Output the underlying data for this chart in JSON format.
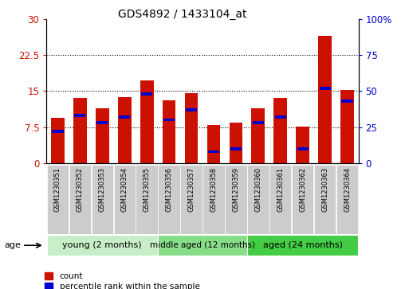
{
  "title": "GDS4892 / 1433104_at",
  "samples": [
    "GSM1230351",
    "GSM1230352",
    "GSM1230353",
    "GSM1230354",
    "GSM1230355",
    "GSM1230356",
    "GSM1230357",
    "GSM1230358",
    "GSM1230359",
    "GSM1230360",
    "GSM1230361",
    "GSM1230362",
    "GSM1230363",
    "GSM1230364"
  ],
  "counts": [
    9.5,
    13.5,
    11.5,
    13.8,
    17.2,
    13.0,
    14.5,
    8.0,
    8.5,
    11.5,
    13.5,
    7.7,
    26.5,
    15.2
  ],
  "percentiles": [
    22,
    33,
    28,
    32,
    48,
    30,
    37,
    8,
    10,
    28,
    32,
    10,
    52,
    43
  ],
  "ylim_left": [
    0,
    30
  ],
  "ylim_right": [
    0,
    100
  ],
  "yticks_left": [
    0,
    7.5,
    15,
    22.5,
    30
  ],
  "yticks_right": [
    0,
    25,
    50,
    75,
    100
  ],
  "bar_color": "#cc1100",
  "marker_color": "#0000cc",
  "groups": [
    {
      "label": "young (2 months)",
      "start": 0,
      "end": 5
    },
    {
      "label": "middle aged (12 months)",
      "start": 5,
      "end": 9
    },
    {
      "label": "aged (24 months)",
      "start": 9,
      "end": 14
    }
  ],
  "group_colors": [
    "#c8eec8",
    "#88dd88",
    "#44cc44"
  ],
  "legend_count_label": "count",
  "legend_pct_label": "percentile rank within the sample",
  "age_label": "age",
  "left_ylabel_color": "#cc1100",
  "right_ylabel_color": "#0000cc",
  "tick_label_bg": "#cccccc",
  "plot_bg": "#ffffff"
}
